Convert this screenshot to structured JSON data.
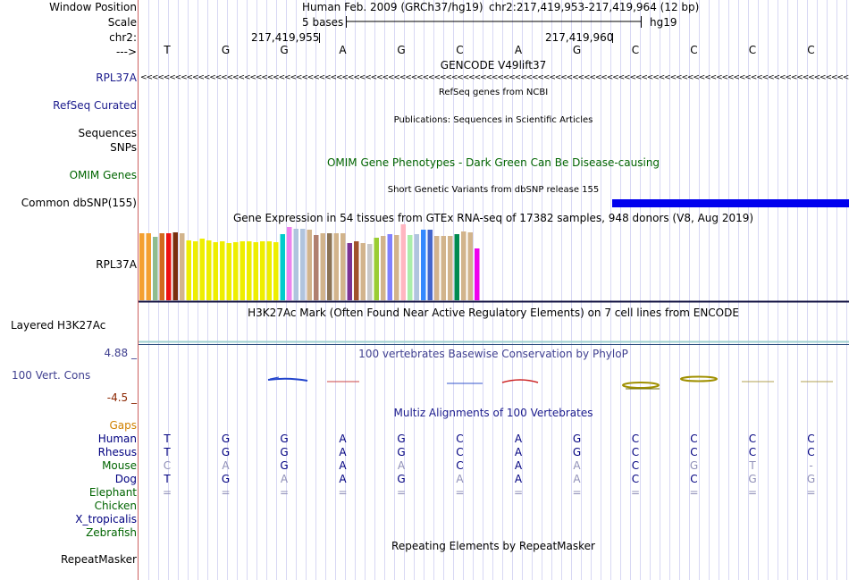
{
  "header": {
    "window_position_label": "Window Position",
    "scale_label": "Scale",
    "chrom_label": "chr2:",
    "strand_label": "--->",
    "assembly": "Human Feb. 2009 (GRCh37/hg19)",
    "position": "chr2:217,419,953-217,419,964 (12 bp)",
    "scale_text": "5 bases",
    "db": "hg19",
    "coord_left": "217,419,955",
    "coord_right": "217,419,960"
  },
  "sequence": [
    "T",
    "G",
    "G",
    "A",
    "G",
    "C",
    "A",
    "G",
    "C",
    "C",
    "C",
    "C"
  ],
  "tracks": {
    "gencode": {
      "title": "GENCODE V49lift37",
      "label": "RPL37A",
      "arrows": "<<<<<<<<<<<<<<<<<<<<<<<<<<<<<<<<<<<<<<<<<<<<<<<<<<<<<<<<<<<<<<<<<<<<<<<<<<<<<<<<<<<<<<<<<<<<<<<<<<<<<<<<<<<<<<<<<<<<<<<<<<<<<<"
    },
    "refseq": {
      "title": "RefSeq genes from NCBI",
      "label": "RefSeq Curated"
    },
    "publications": {
      "title": "Publications: Sequences in Scientific Articles",
      "label1": "Sequences",
      "label2": "SNPs"
    },
    "omim": {
      "title": "OMIM Gene Phenotypes - Dark Green Can Be Disease-causing",
      "label": "OMIM Genes"
    },
    "dbsnp": {
      "title": "Short Genetic Variants from dbSNP release 155",
      "label": "Common dbSNP(155)"
    },
    "gtex": {
      "title": "Gene Expression in 54 tissues from GTEx RNA-seq of 17382 samples, 948 donors (V8, Aug 2019)",
      "label": "RPL37A"
    },
    "h3k27ac": {
      "title": "H3K27Ac Mark (Often Found Near Active Regulatory Elements) on 7 cell lines from ENCODE",
      "label": "Layered H3K27Ac"
    },
    "phylop": {
      "title": "100 vertebrates Basewise Conservation by PhyloP",
      "label": "100 Vert. Cons",
      "max_label": "4.88 _",
      "min_label": "-4.5 _"
    },
    "multiz": {
      "title": "Multiz Alignments of 100 Vertebrates",
      "gaps_label": "Gaps"
    },
    "repeatmasker": {
      "title": "Repeating Elements by RepeatMasker",
      "label": "RepeatMasker"
    }
  },
  "species": [
    {
      "name": "Human",
      "color": "#000080",
      "bases": [
        "T",
        "G",
        "G",
        "A",
        "G",
        "C",
        "A",
        "G",
        "C",
        "C",
        "C",
        "C"
      ],
      "dim": [
        0,
        0,
        0,
        0,
        0,
        0,
        0,
        0,
        0,
        0,
        0,
        0
      ]
    },
    {
      "name": "Rhesus",
      "color": "#000080",
      "bases": [
        "T",
        "G",
        "G",
        "A",
        "G",
        "C",
        "A",
        "G",
        "C",
        "C",
        "C",
        "C"
      ],
      "dim": [
        0,
        0,
        0,
        0,
        0,
        0,
        0,
        0,
        0,
        0,
        0,
        0
      ]
    },
    {
      "name": "Mouse",
      "color": "#006400",
      "bases": [
        "C",
        "A",
        "G",
        "A",
        "A",
        "C",
        "A",
        "A",
        "C",
        "G",
        "T",
        "-"
      ],
      "dim": [
        1,
        1,
        0,
        0,
        1,
        0,
        0,
        1,
        0,
        1,
        1,
        1
      ]
    },
    {
      "name": "Dog",
      "color": "#000080",
      "bases": [
        "T",
        "G",
        "A",
        "A",
        "G",
        "A",
        "A",
        "A",
        "C",
        "C",
        "G",
        "G"
      ],
      "dim": [
        0,
        0,
        1,
        0,
        0,
        1,
        0,
        1,
        0,
        0,
        1,
        1
      ]
    },
    {
      "name": "Elephant",
      "color": "#006400",
      "bases": [
        "=",
        "=",
        "=",
        "=",
        "=",
        "=",
        "=",
        "=",
        "=",
        "=",
        "=",
        "="
      ],
      "dim": [
        1,
        1,
        1,
        1,
        1,
        1,
        1,
        1,
        1,
        1,
        1,
        1
      ]
    },
    {
      "name": "Chicken",
      "color": "#006400",
      "bases": [],
      "dim": []
    },
    {
      "name": "X_tropicalis",
      "color": "#000080",
      "bases": [],
      "dim": []
    },
    {
      "name": "Zebrafish",
      "color": "#006400",
      "bases": [],
      "dim": []
    }
  ],
  "gtex_bars": {
    "colors": [
      "#f4a030",
      "#f4a030",
      "#8fbc8f",
      "#d2691e",
      "#ee1111",
      "#7a2e0e",
      "#d2b48c",
      "#eeee00",
      "#eeee00",
      "#eeee00",
      "#eeee00",
      "#eeee00",
      "#eeee00",
      "#eeee00",
      "#eeee00",
      "#eeee00",
      "#eeee00",
      "#eeee00",
      "#eeee00",
      "#eeee00",
      "#eeee00",
      "#00cccc",
      "#ee82ee",
      "#b0c4de",
      "#b0c4de",
      "#d2b48c",
      "#b08070",
      "#d2b48c",
      "#8b7355",
      "#d2b48c",
      "#d2b48c",
      "#7b3294",
      "#a0522d",
      "#d2b48c",
      "#c8c8c8",
      "#9acd32",
      "#d2b48c",
      "#8080ff",
      "#d2b48c",
      "#ffb6c1",
      "#aaeeaa",
      "#b0c4de",
      "#3388ff",
      "#4466cc",
      "#d2b48c",
      "#d2b48c",
      "#d2b48c",
      "#008a50",
      "#d2b48c",
      "#d2b48c",
      "#ee00ee"
    ],
    "values": [
      75,
      75,
      71,
      75,
      75,
      76,
      75,
      67,
      66,
      69,
      67,
      65,
      66,
      64,
      65,
      66,
      66,
      65,
      66,
      66,
      65,
      74,
      82,
      80,
      80,
      79,
      73,
      75,
      75,
      75,
      75,
      64,
      66,
      64,
      63,
      70,
      72,
      74,
      73,
      85,
      73,
      74,
      79,
      79,
      72,
      72,
      72,
      74,
      77,
      76,
      58
    ]
  },
  "colors": {
    "label_blue": "#1a1a8c",
    "omim_green": "#006400",
    "dbsnp_blue": "#0000ee",
    "phylop_title": "#404090",
    "phylop_min": "#8b2500",
    "gaps_orange": "#d08000",
    "guideline": "#d8d8f4"
  }
}
